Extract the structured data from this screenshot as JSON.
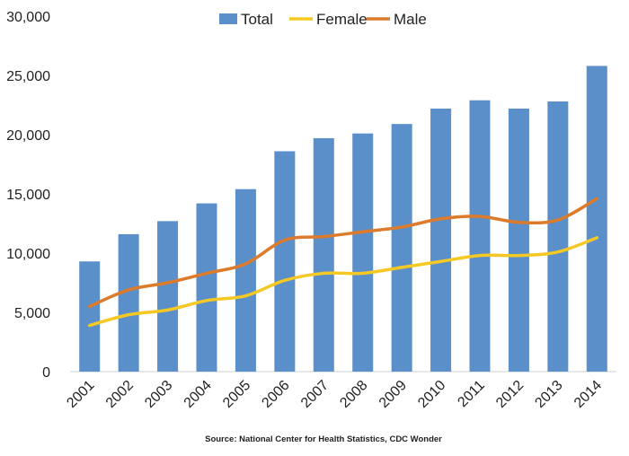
{
  "chart_data": {
    "type": "bar+line",
    "title": "",
    "xlabel": "",
    "ylabel": "",
    "ylim": [
      0,
      30000
    ],
    "yticks": [
      0,
      5000,
      10000,
      15000,
      20000,
      25000,
      30000
    ],
    "ytick_labels": [
      "0",
      "5,000",
      "10,000",
      "15,000",
      "20,000",
      "25,000",
      "30,000"
    ],
    "categories": [
      "2001",
      "2002",
      "2003",
      "2004",
      "2005",
      "2006",
      "2007",
      "2008",
      "2009",
      "2010",
      "2011",
      "2012",
      "2013",
      "2014"
    ],
    "grid": false,
    "legend_position": "top",
    "series": [
      {
        "name": "Total",
        "type": "bar",
        "color": "#5b8fc9",
        "values": [
          9300,
          11600,
          12700,
          14200,
          15400,
          18600,
          19700,
          20100,
          20900,
          22200,
          22900,
          22200,
          22800,
          25800
        ]
      },
      {
        "name": "Female",
        "type": "line",
        "color": "#f5c824",
        "values": [
          3900,
          4800,
          5200,
          6000,
          6400,
          7700,
          8300,
          8300,
          8800,
          9300,
          9800,
          9800,
          10100,
          11300
        ]
      },
      {
        "name": "Male",
        "type": "line",
        "color": "#dc7b2c",
        "values": [
          5500,
          6900,
          7500,
          8300,
          9100,
          11100,
          11400,
          11800,
          12200,
          12900,
          13100,
          12600,
          12800,
          14600
        ]
      }
    ],
    "source": "Source: National Center for Health Statistics, CDC Wonder"
  }
}
